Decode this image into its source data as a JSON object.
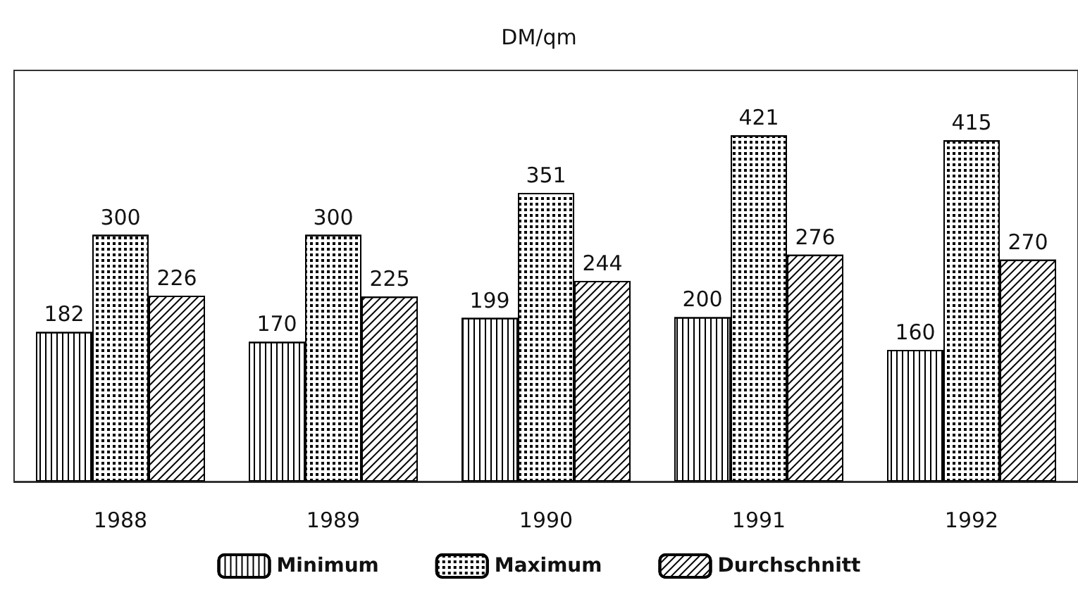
{
  "chart_data": {
    "type": "bar",
    "title": "DM/qm",
    "categories": [
      "1988",
      "1989",
      "1990",
      "1991",
      "1992"
    ],
    "series": [
      {
        "name": "Minimum",
        "color": "#000000",
        "values": [
          182,
          170,
          199,
          200,
          160
        ]
      },
      {
        "name": "Maximum",
        "color": "#000000",
        "values": [
          300,
          300,
          351,
          421,
          415
        ]
      },
      {
        "name": "Durchschnitt",
        "color": "#000000",
        "values": [
          226,
          225,
          244,
          276,
          270
        ]
      }
    ],
    "data_labels": true,
    "legend": "bottom"
  }
}
